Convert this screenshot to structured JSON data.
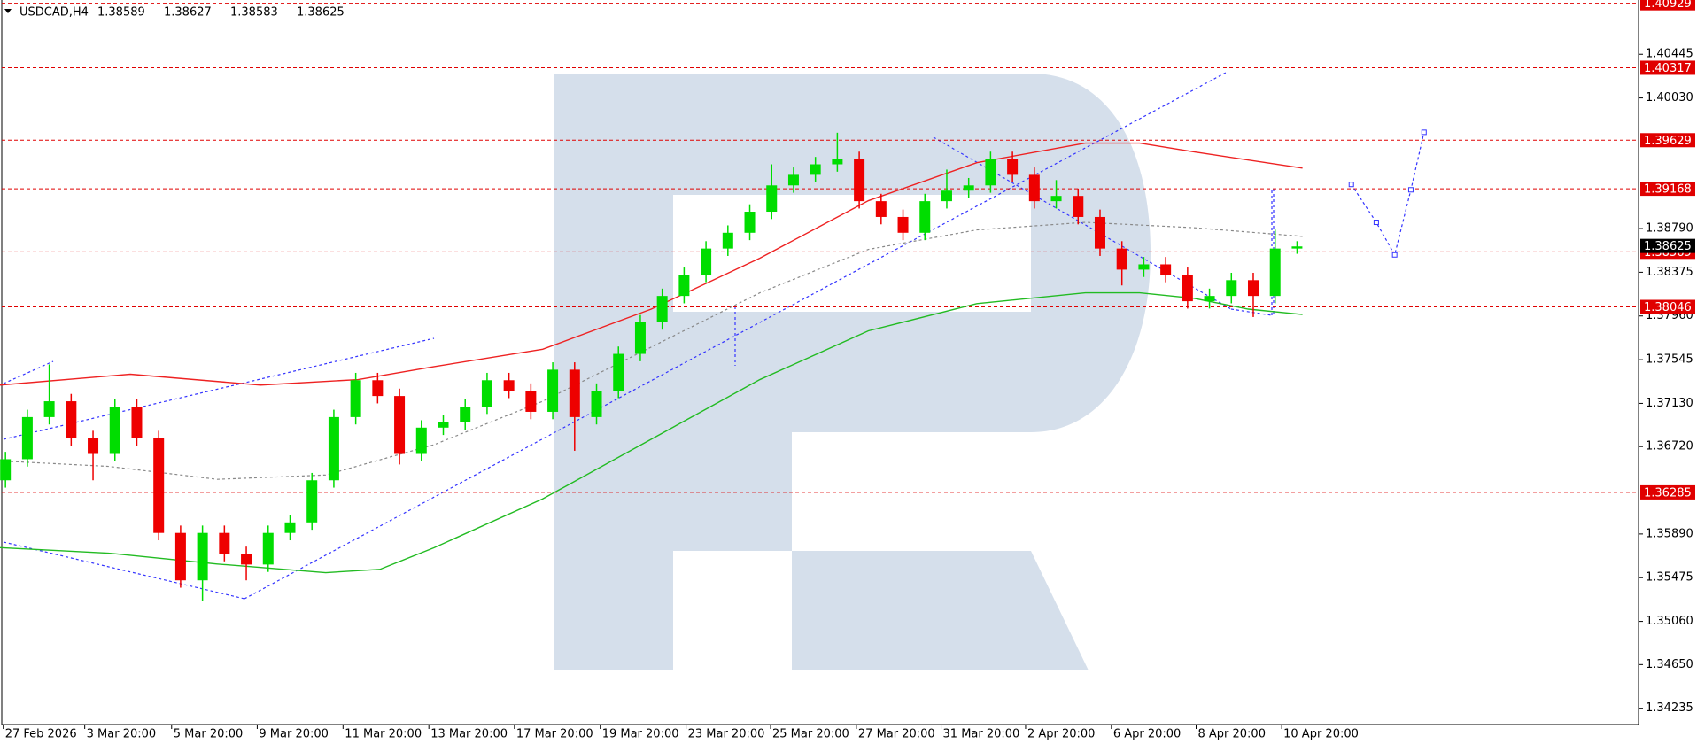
{
  "chart_data": {
    "type": "candlestick",
    "title": "USDCAD,H4",
    "quote": [
      1.38589,
      1.38627,
      1.38583,
      1.38625
    ],
    "ylim": [
      1.34081,
      1.4096
    ],
    "xlim": [
      -0.25,
      74.6
    ],
    "yticks": [
      1.40445,
      {
        "value": 1.4003,
        "label": "1.40030"
      },
      {
        "value": 1.3879,
        "label": "1.38790"
      },
      1.38375,
      {
        "value": 1.3796,
        "label": "1.37960"
      },
      1.37545,
      {
        "value": 1.3713,
        "label": "1.37130"
      },
      {
        "value": 1.3672,
        "label": "1.36720"
      },
      {
        "value": 1.3589,
        "label": "1.35890"
      },
      1.35475,
      {
        "value": 1.3506,
        "label": "1.35060"
      },
      {
        "value": 1.3465,
        "label": "1.34650"
      },
      1.34235
    ],
    "xticks": [
      {
        "value": -0.1,
        "label": "27 Feb 2026"
      },
      {
        "value": 3.62,
        "label": "3 Mar 20:00"
      },
      {
        "value": 7.59,
        "label": "5 Mar 20:00"
      },
      {
        "value": 11.5,
        "label": "9 Mar 20:00"
      },
      {
        "value": 15.42,
        "label": "11 Mar 20:00"
      },
      {
        "value": 19.34,
        "label": "13 Mar 20:00"
      },
      {
        "value": 23.25,
        "label": "17 Mar 20:00"
      },
      {
        "value": 27.17,
        "label": "19 Mar 20:00"
      },
      {
        "value": 31.09,
        "label": "23 Mar 20:00"
      },
      {
        "value": 34.95,
        "label": "25 Mar 20:00"
      },
      {
        "value": 38.87,
        "label": "27 Mar 20:00"
      },
      {
        "value": 42.74,
        "label": "31 Mar 20:00"
      },
      {
        "value": 46.6,
        "label": "2 Apr 20:00"
      },
      {
        "value": 50.52,
        "label": "6 Apr 20:00"
      },
      {
        "value": 54.39,
        "label": "8 Apr 20:00"
      },
      {
        "value": 58.3,
        "label": "10 Apr 20:00"
      }
    ],
    "levels": [
      1.40929,
      1.40317,
      1.39629,
      1.39168,
      1.38569,
      1.38046,
      1.36285
    ],
    "level_color": "#e00000",
    "up_color": "#00dd00",
    "down_color": "#ee0000",
    "open": [
      1.364,
      1.366,
      1.37,
      1.3715,
      1.368,
      1.3665,
      1.371,
      1.368,
      1.359,
      1.3545,
      1.359,
      1.357,
      1.356,
      1.359,
      1.36,
      1.364,
      1.37,
      1.3735,
      1.372,
      1.3665,
      1.369,
      1.3695,
      1.371,
      1.3735,
      1.3725,
      1.3705,
      1.3745,
      1.37,
      1.3725,
      1.376,
      1.379,
      1.3815,
      1.3835,
      1.386,
      1.3875,
      1.3895,
      1.392,
      1.393,
      1.394,
      1.3945,
      1.3905,
      1.389,
      1.3875,
      1.3905,
      1.3915,
      1.392,
      1.3945,
      1.393,
      1.3905,
      1.391,
      1.389,
      1.386,
      1.384,
      1.3845,
      1.3835,
      1.381,
      1.3815,
      1.383,
      1.3815,
      1.386
    ],
    "high": [
      1.3667,
      1.3707,
      1.375,
      1.3722,
      1.3687,
      1.3717,
      1.3717,
      1.3687,
      1.3597,
      1.3597,
      1.3597,
      1.3577,
      1.3597,
      1.3607,
      1.3647,
      1.3707,
      1.3742,
      1.3742,
      1.3727,
      1.3697,
      1.3702,
      1.3717,
      1.3742,
      1.3742,
      1.3732,
      1.3752,
      1.3752,
      1.3732,
      1.3767,
      1.3797,
      1.3822,
      1.3842,
      1.3867,
      1.3882,
      1.3902,
      1.394,
      1.3937,
      1.3947,
      1.397,
      1.3952,
      1.3912,
      1.3897,
      1.3912,
      1.3935,
      1.3927,
      1.3952,
      1.3952,
      1.3937,
      1.3925,
      1.3917,
      1.3897,
      1.3867,
      1.3852,
      1.3852,
      1.3842,
      1.3822,
      1.3837,
      1.3837,
      1.3878,
      1.3867
    ],
    "low": [
      1.3633,
      1.3653,
      1.3693,
      1.3673,
      1.364,
      1.3658,
      1.3673,
      1.3583,
      1.3538,
      1.3525,
      1.3563,
      1.3545,
      1.3553,
      1.3583,
      1.3593,
      1.3633,
      1.3693,
      1.3713,
      1.3655,
      1.3658,
      1.3683,
      1.3688,
      1.3703,
      1.3718,
      1.3698,
      1.3698,
      1.3668,
      1.3693,
      1.3718,
      1.3753,
      1.3783,
      1.3808,
      1.3828,
      1.3853,
      1.3868,
      1.3888,
      1.3913,
      1.3923,
      1.3933,
      1.3898,
      1.3883,
      1.3868,
      1.3868,
      1.3898,
      1.3908,
      1.3913,
      1.3923,
      1.3898,
      1.3898,
      1.3883,
      1.3853,
      1.3825,
      1.3833,
      1.3828,
      1.3803,
      1.3803,
      1.3808,
      1.3795,
      1.3808,
      1.3855
    ],
    "close": [
      1.366,
      1.37,
      1.3715,
      1.368,
      1.3665,
      1.371,
      1.368,
      1.359,
      1.3545,
      1.359,
      1.357,
      1.356,
      1.359,
      1.36,
      1.364,
      1.37,
      1.3735,
      1.372,
      1.3665,
      1.369,
      1.3695,
      1.371,
      1.3735,
      1.3725,
      1.3705,
      1.3745,
      1.37,
      1.3725,
      1.376,
      1.379,
      1.3815,
      1.3835,
      1.386,
      1.3875,
      1.3895,
      1.392,
      1.393,
      1.394,
      1.3945,
      1.3905,
      1.389,
      1.3875,
      1.3905,
      1.3915,
      1.392,
      1.3945,
      1.393,
      1.3905,
      1.391,
      1.389,
      1.386,
      1.384,
      1.3845,
      1.3835,
      1.381,
      1.3815,
      1.383,
      1.3815,
      1.386,
      1.3862
    ],
    "lines": [
      {
        "color": "#ee2222",
        "dashed": false,
        "x": [
          -0.25,
          5.7,
          11.65,
          16.11,
          19.58,
          24.54,
          29.5,
          34.46,
          39.42,
          44.37,
          49.33,
          51.81,
          54.29,
          59.25
        ],
        "values": [
          1.37304,
          1.37407,
          1.37304,
          1.37356,
          1.37479,
          1.37644,
          1.38025,
          1.38509,
          1.39055,
          1.39415,
          1.39601,
          1.39601,
          1.39518,
          1.39364
        ]
      },
      {
        "color": "#22bb22",
        "dashed": false,
        "x": [
          -0.25,
          4.71,
          9.67,
          14.63,
          17.1,
          19.58,
          24.54,
          29.5,
          34.46,
          39.42,
          44.37,
          49.33,
          51.81,
          54.29,
          56.77,
          59.25
        ],
        "values": [
          1.3576,
          1.35708,
          1.35605,
          1.35523,
          1.35554,
          1.3576,
          1.36223,
          1.3679,
          1.37356,
          1.37819,
          1.38077,
          1.3818,
          1.3818,
          1.38128,
          1.38025,
          1.37974
        ]
      },
      {
        "color": "#888888",
        "dashed": true,
        "x": [
          -0.25,
          4.71,
          9.67,
          14.63,
          19.58,
          24.54,
          29.5,
          34.46,
          39.42,
          44.37,
          49.33,
          54.29,
          59.25
        ],
        "values": [
          1.36584,
          1.36532,
          1.36409,
          1.3645,
          1.36738,
          1.3715,
          1.37665,
          1.3818,
          1.38592,
          1.38777,
          1.38849,
          1.38798,
          1.38716
        ]
      },
      {
        "color": "#3333ff",
        "dashed": true,
        "markers": true,
        "x": [
          61.48,
          62.62,
          63.46,
          64.2,
          64.8
        ],
        "values": [
          1.39209,
          1.38849,
          1.3854,
          1.39158,
          1.39704
        ]
      }
    ]
  }
}
